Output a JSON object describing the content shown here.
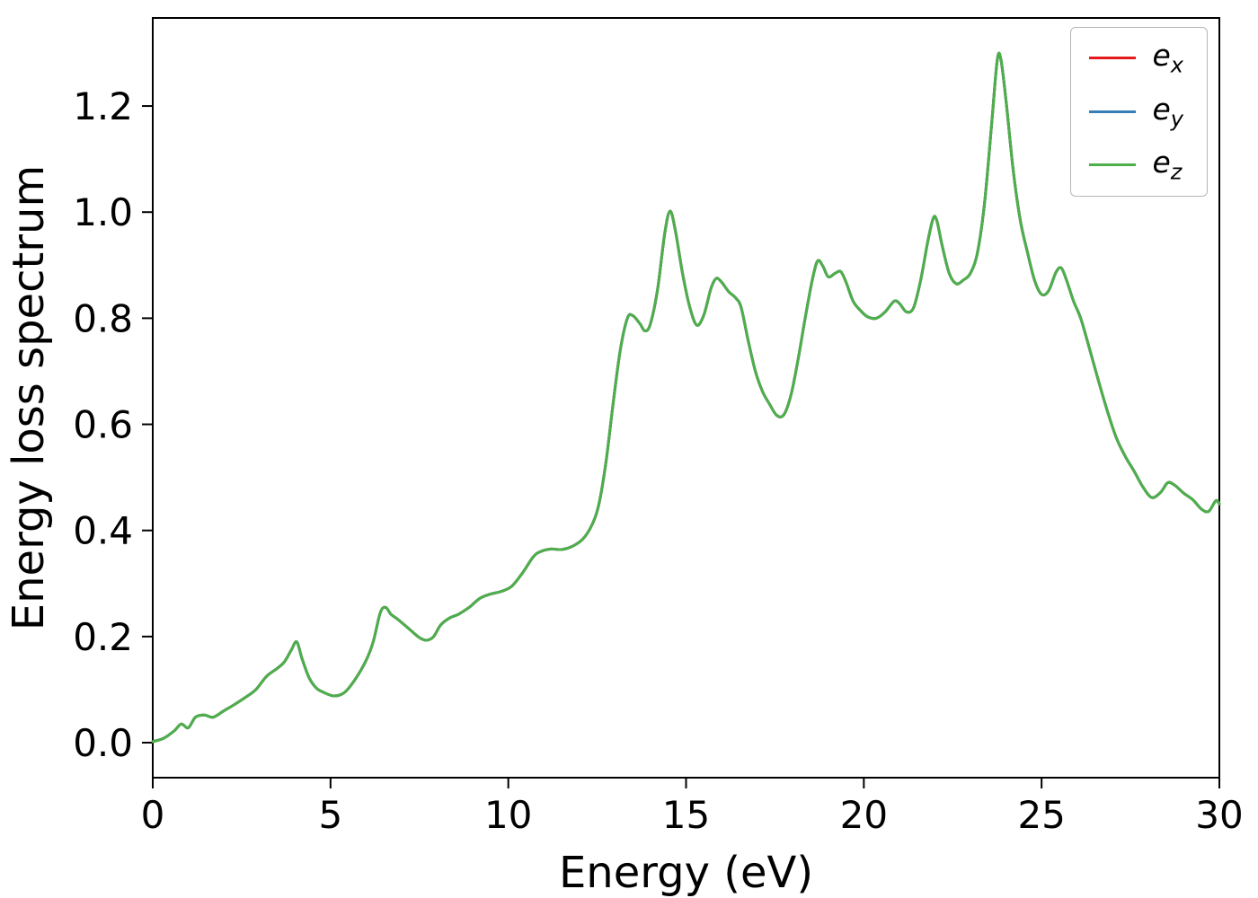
{
  "chart_data": {
    "type": "line",
    "title": "",
    "xlabel": "Energy (eV)",
    "ylabel": "Energy loss spectrum",
    "xlim": [
      0,
      30
    ],
    "ylim": [
      -0.066,
      1.366
    ],
    "xticks": [
      0,
      5,
      10,
      15,
      20,
      25,
      30
    ],
    "yticks": [
      "0.0",
      "0.2",
      "0.4",
      "0.6",
      "0.8",
      "1.0",
      "1.2"
    ],
    "ytick_values": [
      0.0,
      0.2,
      0.4,
      0.6,
      0.8,
      1.0,
      1.2
    ],
    "grid": false,
    "legend_position": "upper right",
    "series_overlap": true,
    "series": [
      {
        "label_base": "e",
        "label_sub": "x",
        "color": "#e41a1c"
      },
      {
        "label_base": "e",
        "label_sub": "y",
        "color": "#377eb8"
      },
      {
        "label_base": "e",
        "label_sub": "z",
        "color": "#4daf4a"
      }
    ],
    "points": [
      [
        0.0,
        0.002
      ],
      [
        0.3,
        0.008
      ],
      [
        0.6,
        0.022
      ],
      [
        0.8,
        0.035
      ],
      [
        1.0,
        0.028
      ],
      [
        1.2,
        0.048
      ],
      [
        1.45,
        0.052
      ],
      [
        1.7,
        0.048
      ],
      [
        2.0,
        0.06
      ],
      [
        2.3,
        0.072
      ],
      [
        2.6,
        0.085
      ],
      [
        2.9,
        0.1
      ],
      [
        3.2,
        0.125
      ],
      [
        3.5,
        0.14
      ],
      [
        3.7,
        0.152
      ],
      [
        3.9,
        0.175
      ],
      [
        4.05,
        0.19
      ],
      [
        4.2,
        0.158
      ],
      [
        4.4,
        0.122
      ],
      [
        4.6,
        0.103
      ],
      [
        4.8,
        0.095
      ],
      [
        5.1,
        0.088
      ],
      [
        5.4,
        0.095
      ],
      [
        5.7,
        0.12
      ],
      [
        6.0,
        0.155
      ],
      [
        6.2,
        0.19
      ],
      [
        6.4,
        0.245
      ],
      [
        6.55,
        0.255
      ],
      [
        6.7,
        0.242
      ],
      [
        6.9,
        0.232
      ],
      [
        7.2,
        0.215
      ],
      [
        7.5,
        0.198
      ],
      [
        7.7,
        0.193
      ],
      [
        7.9,
        0.2
      ],
      [
        8.1,
        0.222
      ],
      [
        8.35,
        0.235
      ],
      [
        8.6,
        0.242
      ],
      [
        8.9,
        0.255
      ],
      [
        9.2,
        0.272
      ],
      [
        9.5,
        0.28
      ],
      [
        9.8,
        0.285
      ],
      [
        10.1,
        0.295
      ],
      [
        10.4,
        0.32
      ],
      [
        10.7,
        0.35
      ],
      [
        10.9,
        0.36
      ],
      [
        11.2,
        0.365
      ],
      [
        11.5,
        0.364
      ],
      [
        11.8,
        0.37
      ],
      [
        12.1,
        0.384
      ],
      [
        12.35,
        0.41
      ],
      [
        12.55,
        0.45
      ],
      [
        12.75,
        0.53
      ],
      [
        12.95,
        0.64
      ],
      [
        13.15,
        0.74
      ],
      [
        13.35,
        0.8
      ],
      [
        13.5,
        0.805
      ],
      [
        13.7,
        0.79
      ],
      [
        13.85,
        0.776
      ],
      [
        14.0,
        0.79
      ],
      [
        14.2,
        0.855
      ],
      [
        14.4,
        0.96
      ],
      [
        14.55,
        1.002
      ],
      [
        14.7,
        0.965
      ],
      [
        14.9,
        0.885
      ],
      [
        15.1,
        0.822
      ],
      [
        15.3,
        0.787
      ],
      [
        15.5,
        0.806
      ],
      [
        15.7,
        0.856
      ],
      [
        15.85,
        0.875
      ],
      [
        16.0,
        0.868
      ],
      [
        16.2,
        0.85
      ],
      [
        16.4,
        0.838
      ],
      [
        16.55,
        0.82
      ],
      [
        16.75,
        0.757
      ],
      [
        16.95,
        0.7
      ],
      [
        17.15,
        0.662
      ],
      [
        17.35,
        0.638
      ],
      [
        17.55,
        0.617
      ],
      [
        17.75,
        0.618
      ],
      [
        17.95,
        0.655
      ],
      [
        18.15,
        0.722
      ],
      [
        18.35,
        0.8
      ],
      [
        18.55,
        0.872
      ],
      [
        18.7,
        0.908
      ],
      [
        18.85,
        0.898
      ],
      [
        19.0,
        0.878
      ],
      [
        19.2,
        0.885
      ],
      [
        19.35,
        0.888
      ],
      [
        19.5,
        0.868
      ],
      [
        19.7,
        0.832
      ],
      [
        19.9,
        0.815
      ],
      [
        20.1,
        0.803
      ],
      [
        20.35,
        0.8
      ],
      [
        20.6,
        0.812
      ],
      [
        20.85,
        0.832
      ],
      [
        21.0,
        0.828
      ],
      [
        21.2,
        0.812
      ],
      [
        21.4,
        0.82
      ],
      [
        21.6,
        0.872
      ],
      [
        21.8,
        0.945
      ],
      [
        21.95,
        0.988
      ],
      [
        22.05,
        0.985
      ],
      [
        22.2,
        0.938
      ],
      [
        22.4,
        0.885
      ],
      [
        22.6,
        0.865
      ],
      [
        22.8,
        0.872
      ],
      [
        23.0,
        0.885
      ],
      [
        23.2,
        0.925
      ],
      [
        23.4,
        1.02
      ],
      [
        23.6,
        1.17
      ],
      [
        23.75,
        1.285
      ],
      [
        23.85,
        1.29
      ],
      [
        24.0,
        1.21
      ],
      [
        24.2,
        1.08
      ],
      [
        24.4,
        0.985
      ],
      [
        24.6,
        0.925
      ],
      [
        24.8,
        0.872
      ],
      [
        25.0,
        0.845
      ],
      [
        25.2,
        0.852
      ],
      [
        25.4,
        0.886
      ],
      [
        25.55,
        0.895
      ],
      [
        25.7,
        0.872
      ],
      [
        25.9,
        0.832
      ],
      [
        26.1,
        0.8
      ],
      [
        26.35,
        0.742
      ],
      [
        26.6,
        0.682
      ],
      [
        26.85,
        0.625
      ],
      [
        27.1,
        0.575
      ],
      [
        27.35,
        0.54
      ],
      [
        27.6,
        0.512
      ],
      [
        27.85,
        0.482
      ],
      [
        28.1,
        0.462
      ],
      [
        28.35,
        0.472
      ],
      [
        28.55,
        0.49
      ],
      [
        28.75,
        0.485
      ],
      [
        29.0,
        0.47
      ],
      [
        29.25,
        0.458
      ],
      [
        29.5,
        0.44
      ],
      [
        29.7,
        0.436
      ],
      [
        29.9,
        0.456
      ],
      [
        30.0,
        0.45
      ]
    ]
  }
}
